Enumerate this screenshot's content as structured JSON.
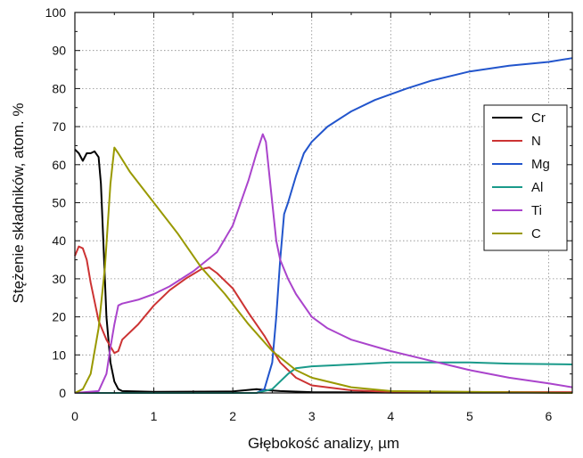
{
  "chart_data": {
    "type": "line",
    "title": "",
    "xlabel": "Głębokość analizy, µm",
    "ylabel": "Stężenie składników, atom. %",
    "xlim": [
      0,
      6.3
    ],
    "ylim": [
      0,
      100
    ],
    "xticks": [
      "0",
      "1",
      "2",
      "3",
      "4",
      "5",
      "6"
    ],
    "yticks": [
      "0",
      "10",
      "20",
      "30",
      "40",
      "50",
      "60",
      "70",
      "80",
      "90",
      "100"
    ],
    "grid": true,
    "legend_position": "right",
    "series": [
      {
        "name": "Cr",
        "color": "#000000",
        "points": [
          [
            0,
            64
          ],
          [
            0.05,
            63
          ],
          [
            0.1,
            61
          ],
          [
            0.15,
            63
          ],
          [
            0.2,
            63
          ],
          [
            0.25,
            63.5
          ],
          [
            0.3,
            62
          ],
          [
            0.33,
            55
          ],
          [
            0.36,
            40
          ],
          [
            0.4,
            20
          ],
          [
            0.45,
            8
          ],
          [
            0.5,
            3
          ],
          [
            0.55,
            1
          ],
          [
            0.6,
            0.5
          ],
          [
            1,
            0.3
          ],
          [
            2,
            0.4
          ],
          [
            2.3,
            1
          ],
          [
            2.4,
            0.8
          ],
          [
            2.6,
            0.5
          ],
          [
            3,
            0.2
          ],
          [
            4,
            0.1
          ],
          [
            6.3,
            0.1
          ]
        ]
      },
      {
        "name": "N",
        "color": "#cc3333",
        "points": [
          [
            0,
            36
          ],
          [
            0.05,
            38.5
          ],
          [
            0.1,
            38
          ],
          [
            0.15,
            35
          ],
          [
            0.2,
            29
          ],
          [
            0.3,
            19
          ],
          [
            0.4,
            14
          ],
          [
            0.5,
            10.5
          ],
          [
            0.55,
            11
          ],
          [
            0.6,
            14
          ],
          [
            0.8,
            18
          ],
          [
            1.0,
            23
          ],
          [
            1.2,
            27
          ],
          [
            1.4,
            30
          ],
          [
            1.6,
            32.5
          ],
          [
            1.7,
            33
          ],
          [
            1.8,
            31.5
          ],
          [
            2.0,
            27.5
          ],
          [
            2.2,
            21
          ],
          [
            2.4,
            15
          ],
          [
            2.6,
            8
          ],
          [
            2.8,
            4
          ],
          [
            3.0,
            2
          ],
          [
            3.5,
            0.7
          ],
          [
            4,
            0.3
          ],
          [
            6.3,
            0.2
          ]
        ]
      },
      {
        "name": "Mg",
        "color": "#2255cc",
        "points": [
          [
            0,
            0
          ],
          [
            2.3,
            0
          ],
          [
            2.4,
            1
          ],
          [
            2.5,
            8
          ],
          [
            2.55,
            20
          ],
          [
            2.6,
            35
          ],
          [
            2.65,
            47
          ],
          [
            2.7,
            50
          ],
          [
            2.8,
            57
          ],
          [
            2.9,
            63
          ],
          [
            3.0,
            66
          ],
          [
            3.2,
            70
          ],
          [
            3.5,
            74
          ],
          [
            3.8,
            77
          ],
          [
            4.0,
            78.5
          ],
          [
            4.2,
            80
          ],
          [
            4.5,
            82
          ],
          [
            5.0,
            84.5
          ],
          [
            5.5,
            86
          ],
          [
            6.0,
            87
          ],
          [
            6.3,
            88
          ]
        ]
      },
      {
        "name": "Al",
        "color": "#1a9a8a",
        "points": [
          [
            0,
            0
          ],
          [
            2.3,
            0
          ],
          [
            2.5,
            1
          ],
          [
            2.7,
            5
          ],
          [
            2.8,
            6.5
          ],
          [
            3.0,
            7
          ],
          [
            3.5,
            7.5
          ],
          [
            4.0,
            8
          ],
          [
            4.5,
            8
          ],
          [
            5.0,
            8
          ],
          [
            5.5,
            7.7
          ],
          [
            6.3,
            7.5
          ]
        ]
      },
      {
        "name": "Ti",
        "color": "#aa44cc",
        "points": [
          [
            0,
            0
          ],
          [
            0.3,
            0.5
          ],
          [
            0.4,
            5
          ],
          [
            0.45,
            12
          ],
          [
            0.5,
            18
          ],
          [
            0.55,
            23
          ],
          [
            0.6,
            23.5
          ],
          [
            0.8,
            24.5
          ],
          [
            1.0,
            26
          ],
          [
            1.2,
            28
          ],
          [
            1.5,
            32
          ],
          [
            1.8,
            37
          ],
          [
            2.0,
            44
          ],
          [
            2.2,
            56
          ],
          [
            2.3,
            63
          ],
          [
            2.38,
            68
          ],
          [
            2.42,
            66
          ],
          [
            2.5,
            50
          ],
          [
            2.55,
            40
          ],
          [
            2.6,
            35
          ],
          [
            2.7,
            30
          ],
          [
            2.8,
            26
          ],
          [
            3.0,
            20
          ],
          [
            3.2,
            17
          ],
          [
            3.5,
            14
          ],
          [
            4.0,
            11
          ],
          [
            4.5,
            8.5
          ],
          [
            5.0,
            6
          ],
          [
            5.5,
            4
          ],
          [
            6.0,
            2.5
          ],
          [
            6.3,
            1.5
          ]
        ]
      },
      {
        "name": "C",
        "color": "#999900",
        "points": [
          [
            0,
            0
          ],
          [
            0.1,
            1
          ],
          [
            0.2,
            5
          ],
          [
            0.3,
            17
          ],
          [
            0.38,
            33
          ],
          [
            0.45,
            55
          ],
          [
            0.5,
            64.5
          ],
          [
            0.55,
            63
          ],
          [
            0.7,
            58
          ],
          [
            1.0,
            50
          ],
          [
            1.3,
            42
          ],
          [
            1.6,
            33
          ],
          [
            1.9,
            26
          ],
          [
            2.2,
            18
          ],
          [
            2.5,
            11
          ],
          [
            2.8,
            6
          ],
          [
            3.0,
            4
          ],
          [
            3.5,
            1.5
          ],
          [
            4.0,
            0.5
          ],
          [
            6.3,
            0
          ]
        ]
      }
    ]
  }
}
